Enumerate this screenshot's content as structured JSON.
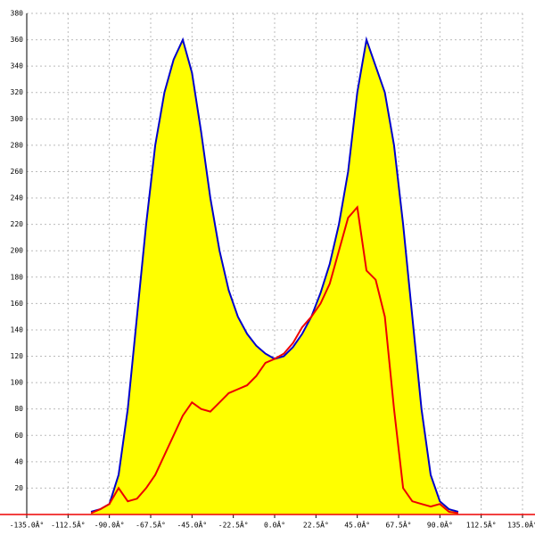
{
  "chart_data": {
    "type": "line",
    "x": [
      -100,
      -95,
      -90,
      -85,
      -80,
      -75,
      -70,
      -65,
      -60,
      -55,
      -50,
      -45,
      -40,
      -35,
      -30,
      -25,
      -20,
      -15,
      -10,
      -5,
      0,
      5,
      10,
      15,
      20,
      25,
      30,
      35,
      40,
      45,
      50,
      55,
      60,
      65,
      70,
      75,
      80,
      85,
      90,
      95,
      100
    ],
    "series": [
      {
        "color": "#0000cc",
        "fill": "#ffff00",
        "values": [
          2,
          4,
          8,
          30,
          80,
          150,
          220,
          280,
          320,
          345,
          360,
          335,
          290,
          240,
          200,
          170,
          150,
          137,
          128,
          122,
          118,
          120,
          127,
          137,
          150,
          168,
          190,
          220,
          260,
          320,
          360,
          340,
          320,
          280,
          220,
          150,
          80,
          30,
          10,
          4,
          2
        ]
      },
      {
        "color": "#ee0000",
        "values": [
          1,
          4,
          8,
          20,
          10,
          12,
          20,
          30,
          45,
          60,
          75,
          85,
          80,
          78,
          85,
          92,
          95,
          98,
          105,
          115,
          118,
          122,
          130,
          142,
          150,
          160,
          175,
          200,
          225,
          233,
          185,
          178,
          150,
          80,
          20,
          10,
          8,
          6,
          8,
          2,
          1
        ]
      }
    ],
    "xlim": [
      -135,
      135
    ],
    "xticks": [
      {
        "value": -135,
        "label": "-135.0Â°"
      },
      {
        "value": -112.5,
        "label": "-112.5Â°"
      },
      {
        "value": -90,
        "label": "-90.0Â°"
      },
      {
        "value": -67.5,
        "label": "-67.5Â°"
      },
      {
        "value": -45,
        "label": "-45.0Â°"
      },
      {
        "value": -22.5,
        "label": "-22.5Â°"
      },
      {
        "value": 0,
        "label": "0.0Â°"
      },
      {
        "value": 22.5,
        "label": "22.5Â°"
      },
      {
        "value": 45,
        "label": "45.0Â°"
      },
      {
        "value": 67.5,
        "label": "67.5Â°"
      },
      {
        "value": 90,
        "label": "90.0Â°"
      },
      {
        "value": 112.5,
        "label": "112.5Â°"
      },
      {
        "value": 135,
        "label": "135.0Â°"
      }
    ],
    "ylim": [
      0,
      380
    ],
    "yticks": [
      20,
      40,
      60,
      80,
      100,
      120,
      140,
      160,
      180,
      200,
      220,
      240,
      260,
      280,
      300,
      320,
      340,
      360,
      380
    ],
    "grid": true
  }
}
